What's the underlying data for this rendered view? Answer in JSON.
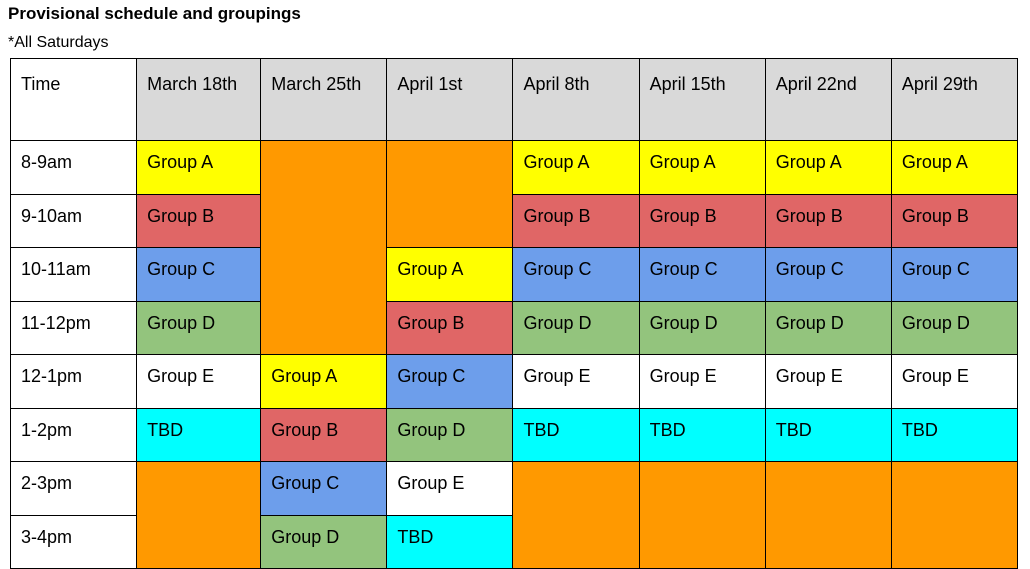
{
  "title": "Provisional schedule and groupings",
  "subtitle": "*All Saturdays",
  "colors": {
    "yellow": "#ffff00",
    "red": "#e06666",
    "blue": "#6d9eeb",
    "green": "#93c47d",
    "white": "#ffffff",
    "cyan": "#00ffff",
    "orange": "#ff9900",
    "header_gray": "#d9d9d9"
  },
  "header": {
    "time": "Time",
    "dates": [
      "March 18th",
      "March 25th",
      "April 1st",
      "April 8th",
      "April 15th",
      "April 22nd",
      "April 29th"
    ]
  },
  "times": [
    "8-9am",
    "9-10am",
    "10-11am",
    "11-12pm",
    "12-1pm",
    "1-2pm",
    "2-3pm",
    "3-4pm"
  ],
  "groups": {
    "a": "Group A",
    "b": "Group B",
    "c": "Group C",
    "d": "Group D",
    "e": "Group E",
    "tbd": "TBD"
  }
}
